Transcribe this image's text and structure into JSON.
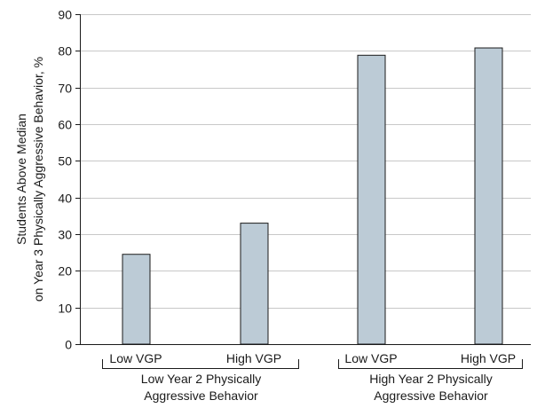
{
  "chart_data": {
    "type": "bar",
    "title": "",
    "xlabel": "",
    "ylabel_lines": [
      "Students Above Median",
      "on Year 3 Physically Aggressive Behavior, %"
    ],
    "ylim": [
      0,
      90
    ],
    "yticks": [
      0,
      10,
      20,
      30,
      40,
      50,
      60,
      70,
      80,
      90
    ],
    "grid": true,
    "categories": [
      "Low VGP",
      "High VGP",
      "Low VGP",
      "High VGP"
    ],
    "values": [
      24.5,
      33,
      78.8,
      80.8
    ],
    "groups": [
      {
        "label_lines": [
          "Low Year 2 Physically",
          "Aggressive Behavior"
        ],
        "members": [
          0,
          1
        ]
      },
      {
        "label_lines": [
          "High Year 2 Physically",
          "Aggressive Behavior"
        ],
        "members": [
          2,
          3
        ]
      }
    ],
    "colors": {
      "bar_fill": "#bccbd6",
      "bar_stroke": "#1a1a1a",
      "grid": "#c8c8c8",
      "axis": "#1a1a1a"
    }
  }
}
